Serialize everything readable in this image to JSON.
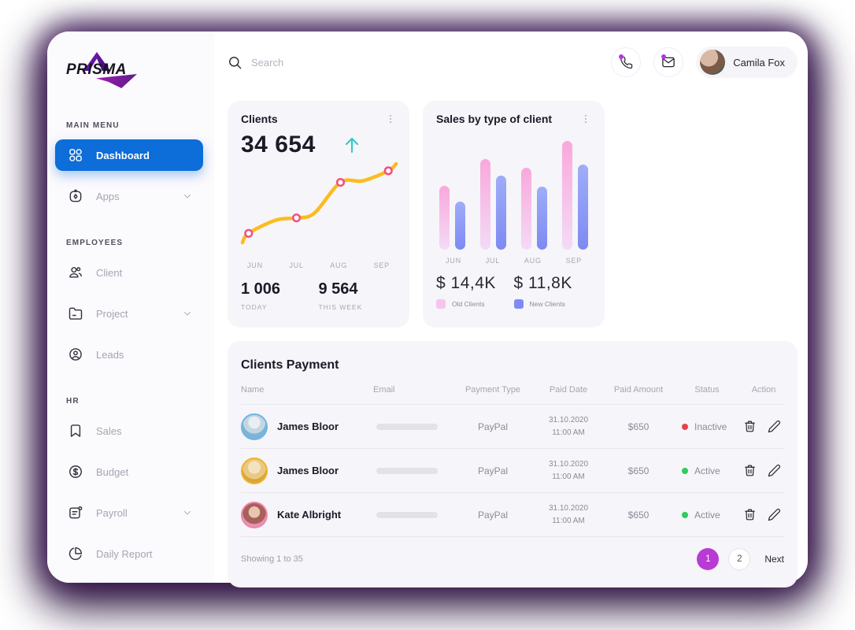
{
  "brand": {
    "name": "PRISMA"
  },
  "topbar": {
    "search_placeholder": "Search",
    "user_name": "Camila Fox"
  },
  "sidebar": {
    "sections": [
      {
        "label": "MAIN MENU",
        "items": [
          {
            "label": "Dashboard",
            "icon": "grid-icon",
            "active": true
          },
          {
            "label": "Apps",
            "icon": "apps-icon",
            "chevron": true
          }
        ]
      },
      {
        "label": "EMPLOYEES",
        "items": [
          {
            "label": "Client",
            "icon": "users-icon"
          },
          {
            "label": "Project",
            "icon": "folder-icon",
            "chevron": true
          },
          {
            "label": "Leads",
            "icon": "leads-icon"
          }
        ]
      },
      {
        "label": "HR",
        "items": [
          {
            "label": "Sales",
            "icon": "bookmark-icon"
          },
          {
            "label": "Budget",
            "icon": "dollar-icon"
          },
          {
            "label": "Payroll",
            "icon": "payroll-icon",
            "chevron": true
          },
          {
            "label": "Daily Report",
            "icon": "pie-icon"
          }
        ]
      }
    ]
  },
  "clients_card": {
    "title": "Clients",
    "total": "34 654",
    "months": [
      "JUN",
      "JUL",
      "AUG",
      "SEP"
    ],
    "stats": [
      {
        "value": "1 006",
        "label": "TODAY"
      },
      {
        "value": "9 564",
        "label": "THIS WEEK"
      }
    ]
  },
  "sales_card": {
    "title": "Sales by type of client",
    "months": [
      "JUN",
      "JUL",
      "AUG",
      "SEP"
    ],
    "totals": [
      {
        "value": "$ 14,4K",
        "label": "Old Clients"
      },
      {
        "value": "$ 11,8K",
        "label": "New Clients"
      }
    ]
  },
  "table": {
    "title": "Clients Payment",
    "columns": [
      "Name",
      "Email",
      "Payment Type",
      "Paid Date",
      "Paid Amount",
      "Status",
      "Action"
    ],
    "rows": [
      {
        "name": "James Bloor",
        "payment_type": "PayPal",
        "paid_date": "31.10.2020",
        "paid_time": "11:00 AM",
        "paid_amount": "$650",
        "status": "Inactive",
        "status_color": "#e8414d",
        "ring": "#6db7e2"
      },
      {
        "name": "James Bloor",
        "payment_type": "PayPal",
        "paid_date": "31.10.2020",
        "paid_time": "11:00 AM",
        "paid_amount": "$650",
        "status": "Active",
        "status_color": "#2ecc5e",
        "ring": "#efb32a"
      },
      {
        "name": "Kate Albright",
        "payment_type": "PayPal",
        "paid_date": "31.10.2020",
        "paid_time": "11:00 AM",
        "paid_amount": "$650",
        "status": "Active",
        "status_color": "#2ecc5e",
        "ring": "#ee86a9"
      }
    ],
    "footer": {
      "showing": "Showing 1 to 35",
      "pages": [
        "1",
        "2"
      ],
      "active_page": "1",
      "next": "Next"
    }
  },
  "colors": {
    "accent_blue": "#0d6dd9",
    "pagination_purple": "#b93ad4",
    "notification_purple": "#b438e2",
    "card_bg": "#f6f5f9",
    "trend_arrow_teal": "#35c8c4"
  },
  "chart_data": [
    {
      "type": "line",
      "title": "Clients",
      "total": 34654,
      "trend": "up",
      "today": 1006,
      "this_week": 9564,
      "x_labels": [
        "JUN",
        "JUL",
        "AUG",
        "SEP"
      ],
      "relative_values": [
        25,
        42,
        78,
        90
      ],
      "points": [
        [
          2,
          106
        ],
        [
          10,
          94
        ],
        [
          45,
          77
        ],
        [
          72,
          74
        ],
        [
          95,
          68
        ],
        [
          129,
          28
        ],
        [
          158,
          26
        ],
        [
          191,
          13
        ],
        [
          201,
          4
        ]
      ],
      "marker_points": [
        [
          10,
          94
        ],
        [
          72,
          74
        ],
        [
          129,
          28
        ],
        [
          191,
          13
        ]
      ],
      "line_color": "#fbbc1f",
      "marker_color": "#f2517f",
      "grid": false
    },
    {
      "type": "bar",
      "title": "Sales by type of client",
      "categories": [
        "JUN",
        "JUL",
        "AUG",
        "SEP"
      ],
      "series": [
        {
          "name": "Old Clients",
          "total_label": "$ 14,4K",
          "relative_values": [
            0.59,
            0.83,
            0.75,
            1.0
          ],
          "color_top": "#f9a8dc",
          "color_bottom": "#f3dbf6",
          "legend_color": "#f7c4ed"
        },
        {
          "name": "New Clients",
          "total_label": "$ 11,8K",
          "relative_values": [
            0.44,
            0.68,
            0.58,
            0.78
          ],
          "color_top": "#9fadf8",
          "color_bottom": "#7d8af2",
          "legend_color": "#7d8bf3"
        }
      ],
      "legend_position": "bottom",
      "grid": false
    }
  ]
}
